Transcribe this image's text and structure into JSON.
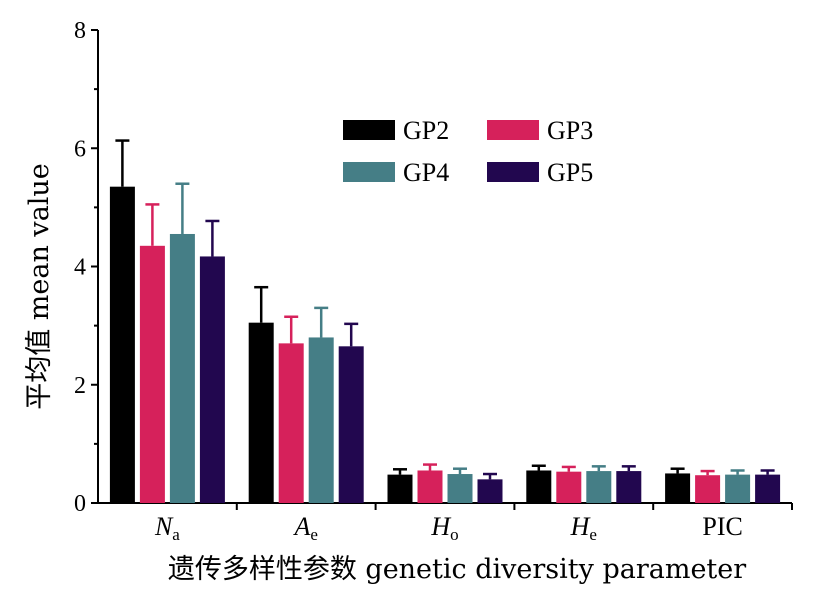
{
  "chart_data": {
    "type": "bar",
    "title": "",
    "xlabel": "遗传多样性参数 genetic diversity parameter",
    "ylabel": "平均值 mean value",
    "ylim": [
      0,
      8
    ],
    "yticks": [
      "0",
      "2",
      "4",
      "6",
      "8"
    ],
    "categories": [
      {
        "main": "N",
        "sub": "a",
        "italic": true
      },
      {
        "main": "A",
        "sub": "e",
        "italic": true
      },
      {
        "main": "H",
        "sub": "o",
        "italic": true
      },
      {
        "main": "H",
        "sub": "e",
        "italic": true
      },
      {
        "main": "PIC",
        "sub": "",
        "italic": false
      }
    ],
    "series": [
      {
        "name": "GP2",
        "color": "#000000",
        "values": [
          5.35,
          3.05,
          0.48,
          0.55,
          0.5
        ],
        "errors": [
          0.78,
          0.6,
          0.09,
          0.08,
          0.08
        ]
      },
      {
        "name": "GP3",
        "color": "#d6215b",
        "values": [
          4.35,
          2.7,
          0.55,
          0.53,
          0.47
        ],
        "errors": [
          0.7,
          0.45,
          0.1,
          0.08,
          0.07
        ]
      },
      {
        "name": "GP4",
        "color": "#457e86",
        "values": [
          4.55,
          2.8,
          0.49,
          0.54,
          0.48
        ],
        "errors": [
          0.85,
          0.5,
          0.09,
          0.08,
          0.07
        ]
      },
      {
        "name": "GP5",
        "color": "#22074f",
        "values": [
          4.17,
          2.65,
          0.4,
          0.54,
          0.48
        ],
        "errors": [
          0.6,
          0.38,
          0.09,
          0.08,
          0.07
        ]
      }
    ],
    "legend": {
      "placement": "top-center",
      "columns": 2
    },
    "grid": false
  }
}
